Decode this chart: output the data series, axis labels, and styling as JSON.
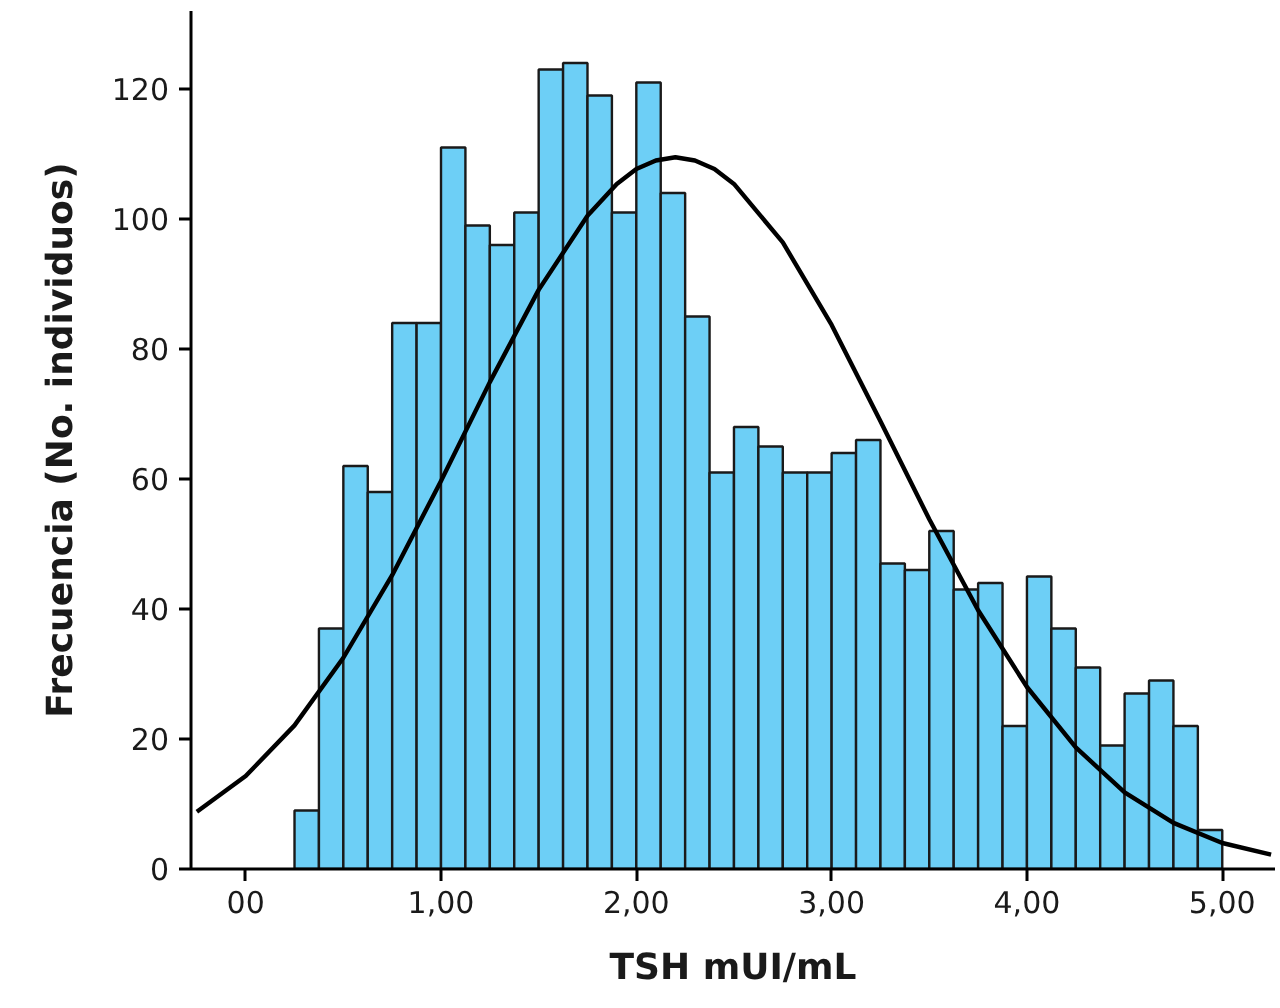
{
  "chart_data": {
    "type": "histogram",
    "xlabel": "TSH mUI/mL",
    "ylabel": "Frecuencia (No. individuos)",
    "bins": [
      0.25,
      0.375,
      0.5,
      0.625,
      0.75,
      0.875,
      1.0,
      1.125,
      1.25,
      1.375,
      1.5,
      1.625,
      1.75,
      1.875,
      2.0,
      2.125,
      2.25,
      2.375,
      2.5,
      2.625,
      2.75,
      2.875,
      3.0,
      3.125,
      3.25,
      3.375,
      3.5,
      3.625,
      3.75,
      3.875,
      4.0,
      4.125,
      4.25,
      4.375,
      4.5,
      4.625,
      4.75,
      4.875,
      5.0
    ],
    "values": [
      9,
      37,
      62,
      58,
      84,
      84,
      111,
      99,
      96,
      101,
      123,
      124,
      119,
      101,
      121,
      104,
      85,
      61,
      68,
      65,
      61,
      61,
      64,
      66,
      47,
      46,
      52,
      43,
      44,
      22,
      45,
      37,
      31,
      19,
      27,
      29,
      22,
      6
    ],
    "color": "#6dcff6",
    "series": [
      {
        "type": "line",
        "color": "#000000",
        "x": [
          -0.25,
          0,
          0.25,
          0.5,
          0.75,
          1.0,
          1.25,
          1.5,
          1.75,
          1.9,
          2.0,
          2.1,
          2.2,
          2.3,
          2.4,
          2.5,
          2.75,
          3.0,
          3.25,
          3.5,
          3.75,
          4.0,
          4.25,
          4.5,
          4.75,
          5.0,
          5.25
        ],
        "values": [
          8.8,
          14.3,
          22.1,
          32.5,
          45.2,
          59.7,
          74.9,
          89.1,
          100.5,
          105.4,
          107.7,
          109.0,
          109.5,
          109.0,
          107.7,
          105.4,
          96.4,
          83.7,
          68.9,
          53.8,
          39.8,
          28.0,
          18.7,
          11.8,
          7.1,
          4.0,
          2.2
        ]
      }
    ],
    "xlim": [
      -0.28,
      5.27
    ],
    "ylim": [
      0,
      132
    ],
    "xticks": [
      {
        "value": 0,
        "label": "00"
      },
      {
        "value": 1,
        "label": "1,00"
      },
      {
        "value": 2,
        "label": "2,00"
      },
      {
        "value": 3,
        "label": "3,00"
      },
      {
        "value": 4,
        "label": "4,00"
      },
      {
        "value": 5,
        "label": "5,00"
      }
    ],
    "yticks": [
      0,
      20,
      40,
      60,
      80,
      100,
      120
    ],
    "grid": false
  }
}
